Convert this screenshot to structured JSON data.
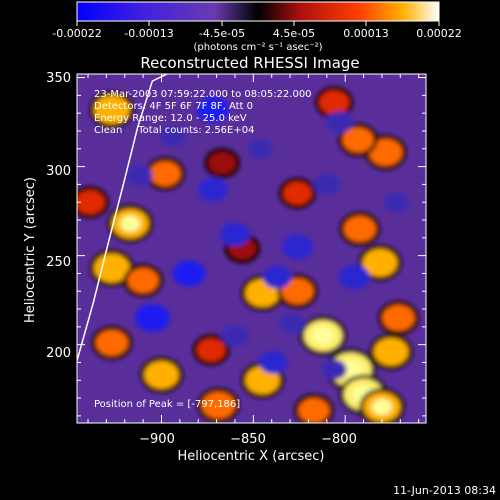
{
  "colorbar": {
    "tick_labels": [
      "-0.00022",
      "-0.00013",
      "-4.5e-05",
      "4.5e-05",
      "0.00013",
      "0.00022"
    ],
    "unit_label": "(photons cm⁻² s⁻¹ asec⁻²)",
    "range": [
      -0.00022,
      0.00022
    ]
  },
  "chart_data": {
    "type": "heatmap",
    "title": "Reconstructed RHESSI Image",
    "xlabel": "Heliocentric X (arcsec)",
    "ylabel": "Heliocentric Y (arcsec)",
    "xlim": [
      -946,
      -756
    ],
    "ylim": [
      156,
      352
    ],
    "x_ticks": [
      -900,
      -850,
      -800
    ],
    "y_ticks": [
      200,
      250,
      300,
      350
    ],
    "x_tick_labels": [
      "−900",
      "−850",
      "−800"
    ],
    "y_tick_labels": [
      "200",
      "250",
      "300",
      "350"
    ],
    "annotations": [
      "23-Mar-2003 07:59:22.000 to 08:05:22.000",
      "Detectors: 4F 5F 6F 7F 8F, Att 0",
      "Energy Range: 12.0 - 25.0 keV",
      "Clean     Total counts: 2.56E+04"
    ],
    "peak_label": "Position of Peak = [-797,186]",
    "peak": [
      -797,
      186
    ],
    "limb_curve": {
      "x": [
        -946,
        -937,
        -929,
        -921,
        -913,
        -905,
        -897
      ],
      "y": [
        191,
        224,
        257,
        289,
        322,
        348,
        352
      ]
    },
    "blobs": [
      {
        "x": -797,
        "y": 186,
        "v": 1.0
      },
      {
        "x": -790,
        "y": 172,
        "v": 0.9
      },
      {
        "x": -812,
        "y": 205,
        "v": 0.85
      },
      {
        "x": -775,
        "y": 196,
        "v": 0.7
      },
      {
        "x": -780,
        "y": 165,
        "v": 0.8
      },
      {
        "x": -845,
        "y": 180,
        "v": 0.7
      },
      {
        "x": -869,
        "y": 166,
        "v": 0.65
      },
      {
        "x": -900,
        "y": 183,
        "v": 0.7
      },
      {
        "x": -927,
        "y": 201,
        "v": 0.6
      },
      {
        "x": -927,
        "y": 243,
        "v": 0.75
      },
      {
        "x": -917,
        "y": 268,
        "v": 0.8
      },
      {
        "x": -927,
        "y": 332,
        "v": 0.75
      },
      {
        "x": -898,
        "y": 296,
        "v": 0.55
      },
      {
        "x": -845,
        "y": 229,
        "v": 0.7
      },
      {
        "x": -826,
        "y": 230,
        "v": 0.6
      },
      {
        "x": -781,
        "y": 246,
        "v": 0.7
      },
      {
        "x": -792,
        "y": 265,
        "v": 0.6
      },
      {
        "x": -771,
        "y": 215,
        "v": 0.6
      },
      {
        "x": -778,
        "y": 308,
        "v": 0.65
      },
      {
        "x": -793,
        "y": 315,
        "v": 0.55
      },
      {
        "x": -806,
        "y": 336,
        "v": 0.5
      },
      {
        "x": -826,
        "y": 285,
        "v": 0.45
      },
      {
        "x": -867,
        "y": 302,
        "v": 0.4
      },
      {
        "x": -856,
        "y": 254,
        "v": 0.4
      },
      {
        "x": -939,
        "y": 280,
        "v": 0.5
      },
      {
        "x": -910,
        "y": 236,
        "v": 0.55
      },
      {
        "x": -873,
        "y": 197,
        "v": 0.45
      },
      {
        "x": -817,
        "y": 163,
        "v": 0.55
      },
      {
        "x": -905,
        "y": 215,
        "v": -0.7
      },
      {
        "x": -885,
        "y": 240,
        "v": -0.6
      },
      {
        "x": -872,
        "y": 287,
        "v": -0.5
      },
      {
        "x": -872,
        "y": 332,
        "v": -0.6
      },
      {
        "x": -860,
        "y": 262,
        "v": -0.5
      },
      {
        "x": -837,
        "y": 238,
        "v": -0.45
      },
      {
        "x": -826,
        "y": 255,
        "v": -0.55
      },
      {
        "x": -795,
        "y": 238,
        "v": -0.55
      },
      {
        "x": -810,
        "y": 290,
        "v": -0.4
      },
      {
        "x": -803,
        "y": 325,
        "v": -0.4
      },
      {
        "x": -839,
        "y": 190,
        "v": -0.45
      },
      {
        "x": -860,
        "y": 205,
        "v": -0.4
      },
      {
        "x": -829,
        "y": 212,
        "v": -0.35
      },
      {
        "x": -912,
        "y": 295,
        "v": -0.35
      },
      {
        "x": -894,
        "y": 317,
        "v": -0.35
      },
      {
        "x": -846,
        "y": 310,
        "v": -0.3
      },
      {
        "x": -772,
        "y": 280,
        "v": -0.3
      },
      {
        "x": -806,
        "y": 186,
        "v": -0.3
      }
    ]
  },
  "footer": {
    "date": "11-Jun-2013 08:34"
  }
}
